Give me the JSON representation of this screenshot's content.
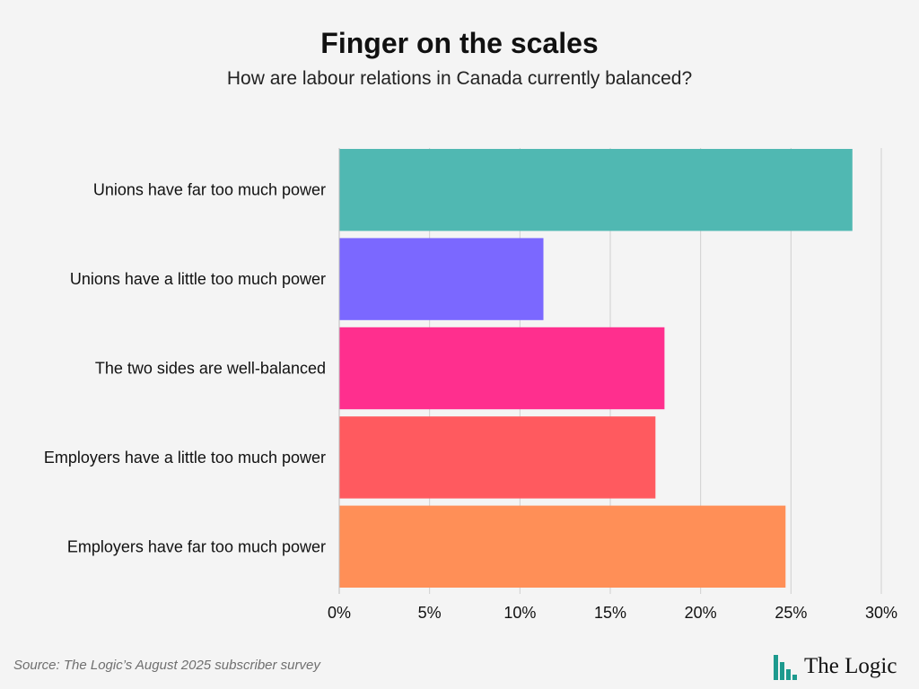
{
  "chart_data": {
    "type": "bar",
    "orientation": "horizontal",
    "title": "Finger on the scales",
    "subtitle": "How are labour relations in Canada currently balanced?",
    "categories": [
      "Unions have far too much power",
      "Unions have a little too much power",
      "The two sides are well-balanced",
      "Employers have a little too much power",
      "Employers have far too much power"
    ],
    "values": [
      28.4,
      11.3,
      18.0,
      17.5,
      24.7
    ],
    "colors": [
      "#50b8b2",
      "#7b68ff",
      "#ff2f8e",
      "#ff5a5f",
      "#ff8f57"
    ],
    "xlim": [
      0,
      30
    ],
    "xticks": [
      0,
      5,
      10,
      15,
      20,
      25,
      30
    ],
    "tick_suffix": "%",
    "grid": true
  },
  "footer": {
    "source": "Source: The Logic’s August 2025 subscriber survey",
    "brand": "The Logic",
    "brand_icon": "bar-chart-logo-icon",
    "brand_color": "#1d9a8e"
  }
}
